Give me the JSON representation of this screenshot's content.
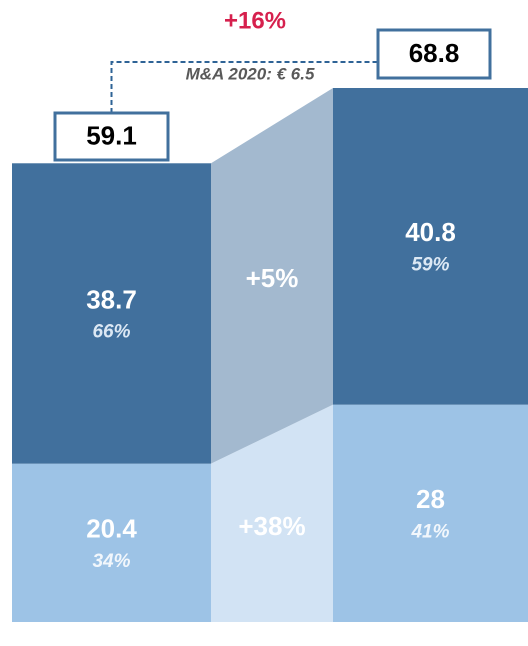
{
  "chart_data": {
    "type": "bar",
    "stacked": true,
    "categories": [
      null,
      null
    ],
    "series": [
      {
        "color": "#9dc3e6",
        "connector_color": "#d2e3f4",
        "values": [
          20.4,
          28.0
        ],
        "share_labels": [
          "34%",
          "41%"
        ],
        "change": "+38%"
      },
      {
        "color": "#41709d",
        "connector_color": "#a3b9cf",
        "values": [
          38.7,
          40.8
        ],
        "share_labels": [
          "66%",
          "59%"
        ],
        "change": "+5%"
      }
    ],
    "totals": [
      59.1,
      68.8
    ],
    "total_change": "+16%",
    "annotation": "M&A 2020: € 6.5"
  }
}
